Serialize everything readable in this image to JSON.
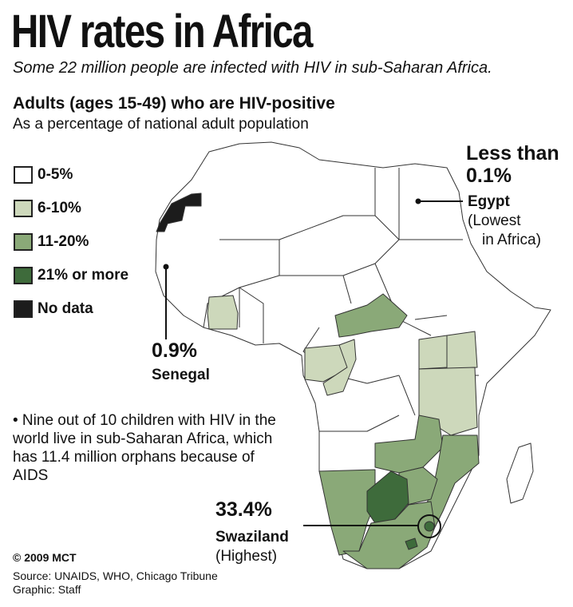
{
  "header": {
    "title": "HIV rates in Africa",
    "subtitle": "Some 22 million people are infected with HIV in sub-Saharan Africa."
  },
  "metric": {
    "title": "Adults (ages 15-49) who are HIV-positive",
    "subtitle": "As a percentage of national adult population"
  },
  "legend": [
    {
      "label": "0-5%",
      "color": "#ffffff"
    },
    {
      "label": "6-10%",
      "color": "#cdd8bb"
    },
    {
      "label": "11-20%",
      "color": "#8aa978"
    },
    {
      "label": "21% or more",
      "color": "#3e6b3b"
    },
    {
      "label": "No data",
      "color": "#1c1c1c"
    }
  ],
  "callouts": {
    "egypt": {
      "line1": "Less than",
      "value": "0.1%",
      "country": "Egypt",
      "note_line1": "(Lowest",
      "note_line2": "in Africa)"
    },
    "senegal": {
      "value": "0.9%",
      "country": "Senegal"
    },
    "swaziland": {
      "value": "33.4%",
      "country": "Swaziland",
      "note": "(Highest)"
    }
  },
  "note": "• Nine out of 10 children with HIV in the world live in sub-Saharan Africa, which has 11.4 million orphans because of AIDS",
  "footer": {
    "credit": "© 2009 MCT",
    "source": "Source: UNAIDS, WHO, Chicago Tribune",
    "graphic": "Graphic: Staff"
  }
}
